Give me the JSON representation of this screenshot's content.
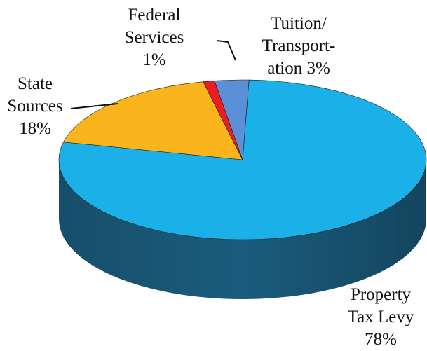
{
  "chart_data": {
    "type": "pie",
    "style": "3d",
    "title": "",
    "slices": [
      {
        "name": "Property Tax Levy",
        "value": 78,
        "label_lines": [
          "Property",
          "Tax Levy",
          "78%"
        ],
        "color": "#1cb0e8",
        "side_color": "#1a5c7d"
      },
      {
        "name": "State Sources",
        "value": 18,
        "label_lines": [
          "State",
          "Sources",
          "18%"
        ],
        "color": "#f9b51b",
        "side_color": "#8a6a1a"
      },
      {
        "name": "Federal Services",
        "value": 1,
        "label_lines": [
          "Federal",
          "Services",
          "1%"
        ],
        "color": "#ec1c24",
        "side_color": "#7a1014"
      },
      {
        "name": "Tuition/Transportation",
        "value": 3,
        "label_lines": [
          "Tuition/",
          "Transport-",
          "ation 3%"
        ],
        "color": "#5b8fd6",
        "side_color": "#2a4a7a"
      }
    ],
    "legend": "none"
  }
}
